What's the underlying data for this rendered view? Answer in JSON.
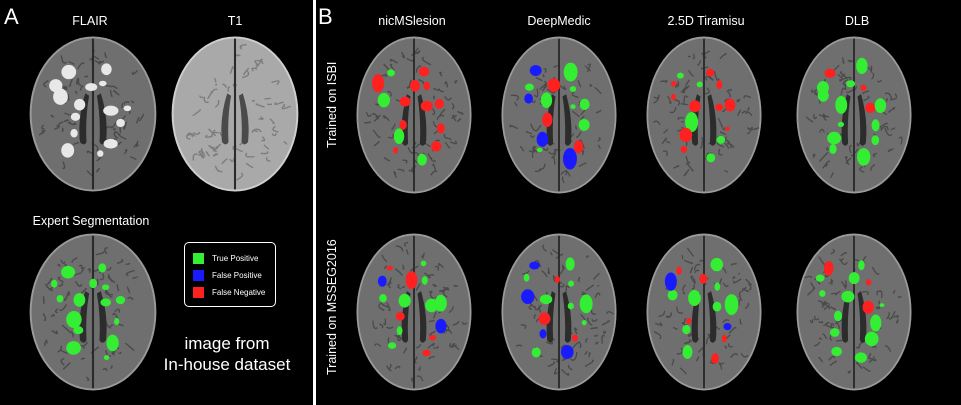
{
  "panels": {
    "a_letter": "A",
    "b_letter": "B"
  },
  "panel_a": {
    "flair_label": "FLAIR",
    "t1_label": "T1",
    "expert_label": "Expert Segmentation",
    "caption_line1": "image from",
    "caption_line2": "In-house dataset"
  },
  "legend": {
    "items": [
      {
        "label": "True Positive",
        "color": "#33ee33"
      },
      {
        "label": "False Positive",
        "color": "#1a1aff"
      },
      {
        "label": "False Negative",
        "color": "#ff2020"
      }
    ]
  },
  "panel_b": {
    "methods": [
      "nicMSlesion",
      "DeepMedic",
      "2.5D Tiramisu",
      "DLB"
    ],
    "rows": [
      "Trained on ISBI",
      "Trained on MSSEG2016"
    ]
  },
  "colors": {
    "tp": "#33ee33",
    "fp": "#1a1aff",
    "fn": "#ff2020",
    "tissue": "#6f6f6f",
    "tissue_t1": "#a9a9a9"
  }
}
